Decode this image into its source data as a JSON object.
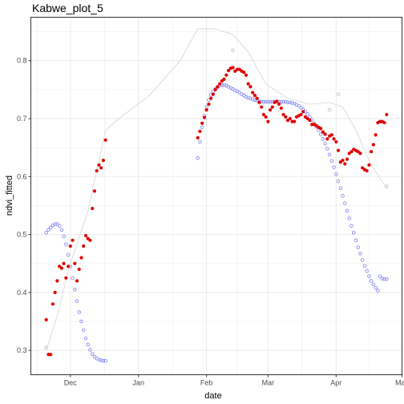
{
  "chart_data": {
    "type": "scatter",
    "title": "Kabwe_plot_5",
    "xlabel": "date",
    "ylabel": "ndvi_fitted",
    "x_ticks": [
      "Dec",
      "Jan",
      "Feb",
      "Mar",
      "Apr",
      "May"
    ],
    "x_tick_dates": [
      "2018-12-01",
      "2019-01-01",
      "2019-02-01",
      "2019-03-01",
      "2019-04-01",
      "2019-05-01"
    ],
    "xlim": [
      "2018-11-13",
      "2019-05-01"
    ],
    "y_ticks": [
      "0.3",
      "0.4",
      "0.5",
      "0.6",
      "0.7",
      "0.8"
    ],
    "ylim": [
      0.258,
      0.875
    ],
    "grid": true,
    "legend": "none",
    "colors": {
      "red": "#e00000",
      "blue": "#8c8cf0",
      "grey": "#c8c8c8",
      "line": "#d9d9d9",
      "grid": "#ebebeb",
      "panel_border": "#333333"
    },
    "series": [
      {
        "style": "red-filled-points",
        "x": [
          "2018-11-20",
          "2018-11-21",
          "2018-11-22",
          "2018-11-23",
          "2018-11-24",
          "2018-11-25",
          "2018-11-26",
          "2018-11-27",
          "2018-11-28",
          "2018-11-29",
          "2018-11-30",
          "2018-12-01",
          "2018-12-02",
          "2018-12-03",
          "2018-12-04",
          "2018-12-05",
          "2018-12-06",
          "2018-12-07",
          "2018-12-08",
          "2018-12-09",
          "2018-12-10",
          "2018-12-11",
          "2018-12-12",
          "2018-12-13",
          "2018-12-14",
          "2018-12-15",
          "2018-12-16",
          "2018-12-17",
          "2019-01-28",
          "2019-01-29",
          "2019-01-30",
          "2019-01-31",
          "2019-02-01",
          "2019-02-02",
          "2019-02-03",
          "2019-02-04",
          "2019-02-05",
          "2019-02-06",
          "2019-02-07",
          "2019-02-08",
          "2019-02-09",
          "2019-02-10",
          "2019-02-11",
          "2019-02-12",
          "2019-02-13",
          "2019-02-14",
          "2019-02-15",
          "2019-02-16",
          "2019-02-17",
          "2019-02-18",
          "2019-02-19",
          "2019-02-20",
          "2019-02-21",
          "2019-02-22",
          "2019-02-23",
          "2019-02-24",
          "2019-02-25",
          "2019-02-26",
          "2019-02-27",
          "2019-02-28",
          "2019-03-01",
          "2019-03-02",
          "2019-03-03",
          "2019-03-04",
          "2019-03-05",
          "2019-03-06",
          "2019-03-07",
          "2019-03-08",
          "2019-03-09",
          "2019-03-10",
          "2019-03-11",
          "2019-03-12",
          "2019-03-13",
          "2019-03-14",
          "2019-03-15",
          "2019-03-16",
          "2019-03-17",
          "2019-03-18",
          "2019-03-19",
          "2019-03-20",
          "2019-03-21",
          "2019-03-22",
          "2019-03-23",
          "2019-03-24",
          "2019-03-25",
          "2019-03-26",
          "2019-03-27",
          "2019-03-28",
          "2019-03-29",
          "2019-03-30",
          "2019-03-31",
          "2019-04-01",
          "2019-04-02",
          "2019-04-03",
          "2019-04-04",
          "2019-04-05",
          "2019-04-06",
          "2019-04-07",
          "2019-04-08",
          "2019-04-09",
          "2019-04-10",
          "2019-04-11",
          "2019-04-12",
          "2019-04-13",
          "2019-04-14",
          "2019-04-15",
          "2019-04-16",
          "2019-04-17",
          "2019-04-18",
          "2019-04-19",
          "2019-04-20",
          "2019-04-21",
          "2019-04-22",
          "2019-04-23",
          "2019-04-24"
        ],
        "y": [
          0.353,
          0.293,
          0.293,
          0.38,
          0.4,
          0.42,
          0.445,
          0.442,
          0.45,
          0.425,
          0.445,
          0.48,
          0.49,
          0.45,
          0.42,
          0.44,
          0.46,
          0.48,
          0.498,
          0.493,
          0.49,
          0.545,
          0.575,
          0.61,
          0.62,
          0.615,
          0.628,
          0.663,
          0.667,
          0.678,
          0.692,
          0.702,
          0.715,
          0.725,
          0.735,
          0.742,
          0.75,
          0.755,
          0.76,
          0.765,
          0.768,
          0.775,
          0.783,
          0.787,
          0.788,
          0.782,
          0.785,
          0.785,
          0.782,
          0.78,
          0.775,
          0.76,
          0.755,
          0.745,
          0.74,
          0.735,
          0.728,
          0.72,
          0.707,
          0.703,
          0.695,
          0.715,
          0.72,
          0.728,
          0.73,
          0.725,
          0.718,
          0.707,
          0.703,
          0.697,
          0.7,
          0.695,
          0.695,
          0.703,
          0.705,
          0.707,
          0.712,
          0.703,
          0.7,
          0.697,
          0.69,
          0.69,
          0.688,
          0.685,
          0.683,
          0.677,
          0.673,
          0.665,
          0.67,
          0.672,
          0.665,
          0.66,
          0.645,
          0.625,
          0.628,
          0.622,
          0.63,
          0.64,
          0.643,
          0.647,
          0.645,
          0.643,
          0.64,
          0.615,
          0.612,
          0.61,
          0.62,
          0.643,
          0.655,
          0.672,
          0.693,
          0.695,
          0.695,
          0.693,
          0.707
        ]
      },
      {
        "style": "blue-open-points",
        "x": [
          "2018-11-20",
          "2018-11-21",
          "2018-11-22",
          "2018-11-23",
          "2018-11-24",
          "2018-11-25",
          "2018-11-26",
          "2018-11-27",
          "2018-11-28",
          "2018-11-29",
          "2018-11-30",
          "2018-12-01",
          "2018-12-02",
          "2018-12-03",
          "2018-12-04",
          "2018-12-05",
          "2018-12-06",
          "2018-12-07",
          "2018-12-08",
          "2018-12-09",
          "2018-12-10",
          "2018-12-11",
          "2018-12-12",
          "2018-12-13",
          "2018-12-14",
          "2018-12-15",
          "2018-12-16",
          "2018-12-17",
          "2019-01-28",
          "2019-01-29",
          "2019-01-30",
          "2019-01-31",
          "2019-02-01",
          "2019-02-02",
          "2019-02-03",
          "2019-02-04",
          "2019-02-05",
          "2019-02-06",
          "2019-02-07",
          "2019-02-08",
          "2019-02-09",
          "2019-02-10",
          "2019-02-11",
          "2019-02-12",
          "2019-02-13",
          "2019-02-14",
          "2019-02-15",
          "2019-02-16",
          "2019-02-17",
          "2019-02-18",
          "2019-02-19",
          "2019-02-20",
          "2019-02-21",
          "2019-02-22",
          "2019-02-23",
          "2019-02-24",
          "2019-02-25",
          "2019-02-26",
          "2019-02-27",
          "2019-02-28",
          "2019-03-01",
          "2019-03-02",
          "2019-03-03",
          "2019-03-04",
          "2019-03-05",
          "2019-03-06",
          "2019-03-07",
          "2019-03-08",
          "2019-03-09",
          "2019-03-10",
          "2019-03-11",
          "2019-03-12",
          "2019-03-13",
          "2019-03-14",
          "2019-03-15",
          "2019-03-16",
          "2019-03-17",
          "2019-03-18",
          "2019-03-19",
          "2019-03-20",
          "2019-03-21",
          "2019-03-22",
          "2019-03-23",
          "2019-03-24",
          "2019-03-25",
          "2019-03-26",
          "2019-03-27",
          "2019-03-28",
          "2019-03-29",
          "2019-03-30",
          "2019-03-31",
          "2019-04-01",
          "2019-04-02",
          "2019-04-03",
          "2019-04-04",
          "2019-04-05",
          "2019-04-06",
          "2019-04-07",
          "2019-04-08",
          "2019-04-09",
          "2019-04-10",
          "2019-04-11",
          "2019-04-12",
          "2019-04-13",
          "2019-04-14",
          "2019-04-15",
          "2019-04-16",
          "2019-04-17",
          "2019-04-18",
          "2019-04-19",
          "2019-04-20",
          "2019-04-21",
          "2019-04-22",
          "2019-04-23",
          "2019-04-24"
        ],
        "y": [
          0.503,
          0.508,
          0.512,
          0.516,
          0.518,
          0.518,
          0.515,
          0.508,
          0.497,
          0.483,
          0.465,
          0.445,
          0.425,
          0.405,
          0.385,
          0.366,
          0.35,
          0.335,
          0.321,
          0.31,
          0.301,
          0.294,
          0.289,
          0.286,
          0.284,
          0.283,
          0.282,
          0.282,
          0.632,
          0.66,
          0.685,
          0.705,
          0.72,
          0.732,
          0.741,
          0.747,
          0.751,
          0.754,
          0.757,
          0.758,
          0.758,
          0.757,
          0.755,
          0.753,
          0.751,
          0.749,
          0.747,
          0.745,
          0.742,
          0.74,
          0.738,
          0.736,
          0.735,
          0.733,
          0.732,
          0.731,
          0.73,
          0.729,
          0.729,
          0.729,
          0.729,
          0.729,
          0.729,
          0.729,
          0.729,
          0.729,
          0.729,
          0.729,
          0.729,
          0.728,
          0.728,
          0.727,
          0.726,
          0.724,
          0.722,
          0.719,
          0.716,
          0.712,
          0.708,
          0.703,
          0.698,
          0.692,
          0.686,
          0.68,
          0.673,
          0.665,
          0.657,
          0.648,
          0.638,
          0.627,
          0.616,
          0.604,
          0.592,
          0.58,
          0.567,
          0.554,
          0.541,
          0.528,
          0.515,
          0.503,
          0.49,
          0.478,
          0.467,
          0.456,
          0.446,
          0.437,
          0.428,
          0.42,
          0.414,
          0.408,
          0.403,
          0.428,
          0.424,
          0.423,
          0.423
        ]
      },
      {
        "style": "grey-open-points",
        "x": [
          "2018-11-20",
          "2019-02-13",
          "2019-03-29",
          "2019-04-02",
          "2019-04-24"
        ],
        "y": [
          0.305,
          0.818,
          0.715,
          0.742,
          0.583
        ]
      },
      {
        "style": "grey-line",
        "x": [
          "2018-11-20",
          "2018-11-25",
          "2018-12-01",
          "2018-12-09",
          "2018-12-17",
          "2018-12-23",
          "2019-01-06",
          "2019-01-20",
          "2019-01-28",
          "2019-02-05",
          "2019-02-13",
          "2019-02-20",
          "2019-02-28",
          "2019-03-10",
          "2019-03-20",
          "2019-03-29",
          "2019-04-04",
          "2019-04-10",
          "2019-04-17",
          "2019-04-24"
        ],
        "y": [
          0.3,
          0.36,
          0.45,
          0.54,
          0.68,
          0.7,
          0.74,
          0.8,
          0.855,
          0.855,
          0.845,
          0.815,
          0.76,
          0.735,
          0.725,
          0.728,
          0.72,
          0.68,
          0.62,
          0.58
        ]
      }
    ]
  }
}
